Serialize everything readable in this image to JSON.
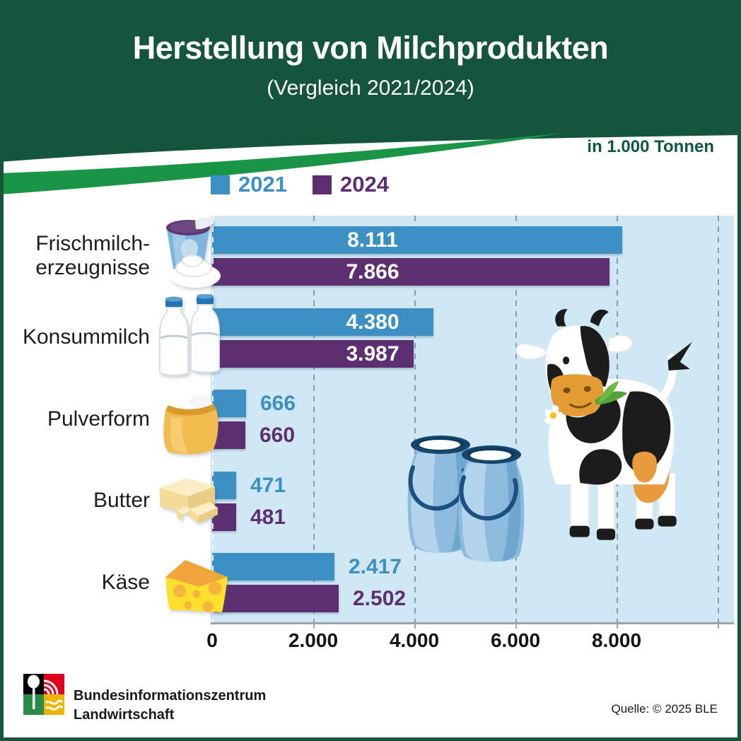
{
  "header": {
    "title": "Herstellung von Milchprodukten",
    "subtitle": "(Vergleich 2021/2024)"
  },
  "unit_label": "in 1.000 Tonnen",
  "legend": [
    {
      "label": "2021",
      "color": "#3d90c4"
    },
    {
      "label": "2024",
      "color": "#5e2f70"
    }
  ],
  "chart_data": {
    "type": "bar",
    "orientation": "horizontal",
    "title": "Herstellung von Milchprodukten (Vergleich 2021/2024)",
    "unit": "in 1.000 Tonnen",
    "categories": [
      "Frischmilcherzeugnisse",
      "Konsummilch",
      "Pulverform",
      "Butter",
      "Käse"
    ],
    "label_lines": [
      [
        "Frischmilch-",
        "erzeugnisse"
      ],
      [
        "Konsummilch",
        ""
      ],
      [
        "Pulverform",
        ""
      ],
      [
        "Butter",
        ""
      ],
      [
        "Käse",
        ""
      ]
    ],
    "category_icons": [
      "yogurt-cup",
      "milk-bottles",
      "milk-powder-bag",
      "butter-block",
      "cheese-wedge"
    ],
    "series": [
      {
        "name": "2021",
        "color": "#3d90c4",
        "values": [
          8111,
          4380,
          666,
          471,
          2417
        ]
      },
      {
        "name": "2024",
        "color": "#5e2f70",
        "values": [
          7866,
          3987,
          660,
          481,
          2502
        ]
      }
    ],
    "value_labels": [
      [
        "8.111",
        "7.866"
      ],
      [
        "4.380",
        "3.987"
      ],
      [
        "666",
        "660"
      ],
      [
        "471",
        "481"
      ],
      [
        "2.417",
        "2.502"
      ]
    ],
    "x_tick_labels": [
      "0",
      "2.000",
      "4.000",
      "6.000",
      "8.000"
    ],
    "x_tick_values": [
      0,
      2000,
      4000,
      6000,
      8000
    ],
    "xlim": [
      0,
      10320
    ],
    "grid": "dashed-vertical",
    "legend_position": "top-left"
  },
  "footer": {
    "org_line1": "Bundesinformationszentrum",
    "org_line2": "Landwirtschaft",
    "source": "Quelle: © 2025 BLE"
  },
  "colors": {
    "header_green": "#15553c",
    "ribbon_green": "#1a9447",
    "unit_green": "#0d5941",
    "bar_blue": "#3d90c4",
    "bar_purple": "#5e2f70",
    "plot_bg": "#cfe8f4",
    "grid": "#7fa0b2",
    "axis": "#9aa4ab",
    "text": "#1d1d1b"
  }
}
